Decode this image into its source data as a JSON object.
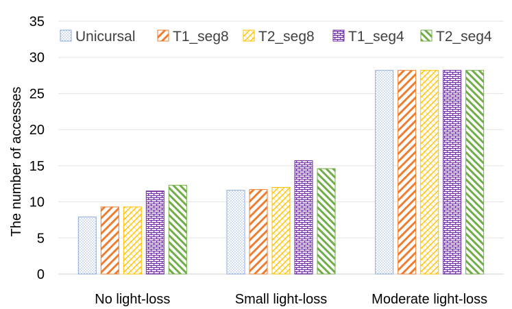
{
  "chart_data": {
    "type": "bar",
    "categories": [
      "No light-loss",
      "Small light-loss",
      "Moderate light-loss"
    ],
    "series": [
      {
        "name": "Unicursal",
        "values": [
          7.9,
          11.6,
          28.2
        ],
        "color": "#8FAADC",
        "pattern": "dots"
      },
      {
        "name": "T1_seg8",
        "values": [
          9.3,
          11.7,
          28.2
        ],
        "color": "#ED7D31",
        "pattern": "diagonal-wide"
      },
      {
        "name": "T2_seg8",
        "values": [
          9.3,
          12.0,
          28.2
        ],
        "color": "#FFC000",
        "pattern": "diagonal-cross"
      },
      {
        "name": "T1_seg4",
        "values": [
          11.5,
          15.7,
          28.2
        ],
        "color": "#7030A0",
        "pattern": "brick"
      },
      {
        "name": "T2_seg4",
        "values": [
          12.3,
          14.6,
          28.2
        ],
        "color": "#70AD47",
        "pattern": "diagonal-thick"
      }
    ],
    "title": "",
    "xlabel": "",
    "ylabel": "The number of accesses",
    "ylim": [
      0,
      35
    ],
    "yticks": [
      "0",
      "5",
      "10",
      "15",
      "20",
      "25",
      "30",
      "35"
    ],
    "grid": true,
    "legend": "top"
  }
}
